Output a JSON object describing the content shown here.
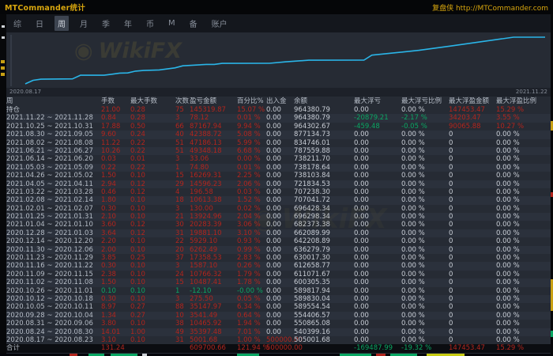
{
  "window": {
    "title": "MTCommander统计",
    "brand": "复盘侠 http://MTCommander.com"
  },
  "tabs": {
    "items": [
      {
        "label": "综",
        "selected": false
      },
      {
        "label": "日",
        "selected": false
      },
      {
        "label": "周",
        "selected": true
      },
      {
        "label": "月",
        "selected": false
      },
      {
        "label": "季",
        "selected": false
      },
      {
        "label": "年",
        "selected": false
      },
      {
        "label": "币",
        "selected": false
      },
      {
        "label": "M",
        "selected": false
      },
      {
        "label": "备",
        "selected": false
      },
      {
        "label": "账户",
        "selected": false
      }
    ]
  },
  "watermark": {
    "label": "WikiFX",
    "logo_icon": "◉"
  },
  "colors": {
    "accent_yellow": "#d8a60e",
    "equity_line": "#2ab5e8",
    "profit_red": "#b3251d",
    "loss_green": "#0aa763",
    "panel_bg": "#262b34"
  },
  "chart": {
    "start_date": "2020.08.17",
    "end_date": "2021.11.22",
    "chart_data": {
      "type": "line",
      "title": "",
      "xlabel": "",
      "ylabel": "",
      "legend": [],
      "grid": false,
      "x": [
        "2020.08.17",
        "2020.08.24",
        "2020.08.31",
        "2020.09.28",
        "2020.10.05",
        "2020.10.12",
        "2020.10.26",
        "2020.11.02",
        "2020.11.09",
        "2020.11.16",
        "2020.11.23",
        "2020.11.30",
        "2020.12.14",
        "2020.12.28",
        "2021.01.04",
        "2021.01.25",
        "2021.02.01",
        "2021.02.08",
        "2021.03.22",
        "2021.04.05",
        "2021.04.26",
        "2021.05.03",
        "2021.06.14",
        "2021.06.21",
        "2021.08.02",
        "2021.08.30",
        "2021.10.25",
        "2021.11.22"
      ],
      "values": [
        505001.68,
        540399.16,
        550865.08,
        554406.57,
        589554.54,
        589830.04,
        589817.94,
        600305.35,
        611071.67,
        612658.77,
        630017.3,
        636279.79,
        642208.89,
        662089.99,
        682373.38,
        696298.34,
        696428.34,
        707041.72,
        707238.3,
        721834.53,
        738103.84,
        738178.64,
        738211.7,
        787559.88,
        834746.01,
        877134.73,
        964302.67,
        964380.79
      ],
      "ylim": [
        505001.68,
        964380.79
      ]
    }
  },
  "table": {
    "columns": [
      "周",
      "手数",
      "最大手数",
      "次数",
      "盈亏金额",
      "百分比%",
      "出入金",
      "余额",
      "最大浮亏",
      "最大浮亏比例",
      "最大浮盈金额",
      "最大浮盈比例"
    ],
    "rows": [
      {
        "cells": [
          "持仓",
          "21.00",
          "0.28",
          "75",
          "145319.87",
          "15.07 %",
          "0.00",
          "964380.79",
          "0.00",
          "0.00 %",
          "147453.47",
          "15.29 %"
        ],
        "styles": "drrrrrwwwwrr"
      },
      {
        "cells": [
          "2021.11.22 ~ 2021.11.28",
          "0.84",
          "0.28",
          "3",
          "78.12",
          "0.01 %",
          "0.00",
          "964380.79",
          "-20879.21",
          "-2.17 %",
          "34203.47",
          "3.55 %"
        ],
        "styles": "drrrrrwwggrr"
      },
      {
        "cells": [
          "2021.10.25 ~ 2021.10.31",
          "17.88",
          "0.50",
          "66",
          "87167.94",
          "9.94 %",
          "0.00",
          "964302.67",
          "-459.48",
          "-0.05 %",
          "90065.88",
          "10.27 %"
        ],
        "styles": "drrrrrwwggrr"
      },
      {
        "cells": [
          "2021.08.30 ~ 2021.09.05",
          "9.60",
          "0.24",
          "40",
          "42388.72",
          "5.08 %",
          "0.00",
          "877134.73",
          "0.00",
          "0.00 %",
          "0",
          "0.00 %"
        ],
        "styles": "drrrrrwwwwww"
      },
      {
        "cells": [
          "2021.08.02 ~ 2021.08.08",
          "11.22",
          "0.22",
          "51",
          "47186.13",
          "5.99 %",
          "0.00",
          "834746.01",
          "0.00",
          "0.00 %",
          "0",
          "0.00 %"
        ],
        "styles": "drrrrrwwwwww"
      },
      {
        "cells": [
          "2021.06.21 ~ 2021.06.27",
          "10.26",
          "0.22",
          "51",
          "49348.18",
          "6.68 %",
          "0.00",
          "787559.88",
          "0.00",
          "0.00 %",
          "0",
          "0.00 %"
        ],
        "styles": "drrrrrwwwwww"
      },
      {
        "cells": [
          "2021.06.14 ~ 2021.06.20",
          "0.03",
          "0.01",
          "3",
          "33.06",
          "0.00 %",
          "0.00",
          "738211.70",
          "0.00",
          "0.00 %",
          "0",
          "0.00 %"
        ],
        "styles": "drrrrrwwwwww"
      },
      {
        "cells": [
          "2021.05.03 ~ 2021.05.09",
          "0.22",
          "0.22",
          "1",
          "74.80",
          "0.01 %",
          "0.00",
          "738178.64",
          "0.00",
          "0.00 %",
          "0",
          "0.00 %"
        ],
        "styles": "drrrrrwwwwww"
      },
      {
        "cells": [
          "2021.04.26 ~ 2021.05.02",
          "1.50",
          "0.10",
          "15",
          "16269.31",
          "2.25 %",
          "0.00",
          "738103.84",
          "0.00",
          "0.00 %",
          "0",
          "0.00 %"
        ],
        "styles": "drrrrrwwwwww"
      },
      {
        "cells": [
          "2021.04.05 ~ 2021.04.11",
          "2.94",
          "0.12",
          "29",
          "14596.23",
          "2.06 %",
          "0.00",
          "721834.53",
          "0.00",
          "0.00 %",
          "0",
          "0.00 %"
        ],
        "styles": "drrrrrwwwwww"
      },
      {
        "cells": [
          "2021.03.22 ~ 2021.03.28",
          "0.46",
          "0.12",
          "4",
          "196.58",
          "0.03 %",
          "0.00",
          "707238.30",
          "0.00",
          "0.00 %",
          "0",
          "0.00 %"
        ],
        "styles": "drrrrrwwwwww"
      },
      {
        "cells": [
          "2021.02.08 ~ 2021.02.14",
          "1.80",
          "0.10",
          "18",
          "10613.38",
          "1.52 %",
          "0.00",
          "707041.72",
          "0.00",
          "0.00 %",
          "0",
          "0.00 %"
        ],
        "styles": "drrrrrwwwwww"
      },
      {
        "cells": [
          "2021.02.01 ~ 2021.02.07",
          "0.30",
          "0.10",
          "3",
          "130.00",
          "0.02 %",
          "0.00",
          "696428.34",
          "0.00",
          "0.00 %",
          "0",
          "0.00 %"
        ],
        "styles": "drrrrrwwwwww"
      },
      {
        "cells": [
          "2021.01.25 ~ 2021.01.31",
          "2.10",
          "0.10",
          "21",
          "13924.96",
          "2.04 %",
          "0.00",
          "696298.34",
          "0.00",
          "0.00 %",
          "0",
          "0.00 %"
        ],
        "styles": "drrrrrwwwwww"
      },
      {
        "cells": [
          "2021.01.04 ~ 2021.01.10",
          "3.60",
          "0.12",
          "30",
          "20283.39",
          "3.06 %",
          "0.00",
          "682373.38",
          "0.00",
          "0.00 %",
          "0",
          "0.00 %"
        ],
        "styles": "drrrrrwwwwww"
      },
      {
        "cells": [
          "2020.12.28 ~ 2021.01.03",
          "3.64",
          "0.12",
          "31",
          "19881.10",
          "3.10 %",
          "0.00",
          "662089.99",
          "0.00",
          "0.00 %",
          "0",
          "0.00 %"
        ],
        "styles": "drrrrrwwwwww"
      },
      {
        "cells": [
          "2020.12.14 ~ 2020.12.20",
          "2.20",
          "0.10",
          "22",
          "5929.10",
          "0.93 %",
          "0.00",
          "642208.89",
          "0.00",
          "0.00 %",
          "0",
          "0.00 %"
        ],
        "styles": "drrrrrwwwwww"
      },
      {
        "cells": [
          "2020.11.30 ~ 2020.12.06",
          "2.00",
          "0.10",
          "20",
          "6262.49",
          "0.99 %",
          "0.00",
          "636279.79",
          "0.00",
          "0.00 %",
          "0",
          "0.00 %"
        ],
        "styles": "drrrrrwwwwww"
      },
      {
        "cells": [
          "2020.11.23 ~ 2020.11.29",
          "3.85",
          "0.25",
          "37",
          "17358.53",
          "2.83 %",
          "0.00",
          "630017.30",
          "0.00",
          "0.00 %",
          "0",
          "0.00 %"
        ],
        "styles": "drrrrrwwwwww"
      },
      {
        "cells": [
          "2020.11.16 ~ 2020.11.22",
          "0.30",
          "0.10",
          "3",
          "1587.10",
          "0.26 %",
          "0.00",
          "612658.77",
          "0.00",
          "0.00 %",
          "0",
          "0.00 %"
        ],
        "styles": "drrrrrwwwwww"
      },
      {
        "cells": [
          "2020.11.09 ~ 2020.11.15",
          "2.38",
          "0.10",
          "24",
          "10766.32",
          "1.79 %",
          "0.00",
          "611071.67",
          "0.00",
          "0.00 %",
          "0",
          "0.00 %"
        ],
        "styles": "drrrrrwwwwww"
      },
      {
        "cells": [
          "2020.11.02 ~ 2020.11.08",
          "1.50",
          "0.10",
          "15",
          "10487.41",
          "1.78 %",
          "0.00",
          "600305.35",
          "0.00",
          "0.00 %",
          "0",
          "0.00 %"
        ],
        "styles": "drrrrrwwwwww"
      },
      {
        "cells": [
          "2020.10.26 ~ 2020.11.01",
          "0.10",
          "0.10",
          "1",
          "-12.10",
          "-0.00 %",
          "0.00",
          "589817.94",
          "0.00",
          "0.00 %",
          "0",
          "0.00 %"
        ],
        "styles": "dgggggwwwwww"
      },
      {
        "cells": [
          "2020.10.12 ~ 2020.10.18",
          "0.30",
          "0.10",
          "3",
          "275.50",
          "0.05 %",
          "0.00",
          "589830.04",
          "0.00",
          "0.00 %",
          "0",
          "0.00 %"
        ],
        "styles": "drrrrrwwwwww"
      },
      {
        "cells": [
          "2020.10.05 ~ 2020.10.11",
          "8.97",
          "0.27",
          "88",
          "35147.97",
          "6.34 %",
          "0.00",
          "589554.54",
          "0.00",
          "0.00 %",
          "0",
          "0.00 %"
        ],
        "styles": "drrrrrwwwwww"
      },
      {
        "cells": [
          "2020.09.28 ~ 2020.10.04",
          "1.34",
          "0.27",
          "10",
          "3541.49",
          "0.64 %",
          "0.00",
          "554406.57",
          "0.00",
          "0.00 %",
          "0",
          "0.00 %"
        ],
        "styles": "drrrrrwwwwww"
      },
      {
        "cells": [
          "2020.08.31 ~ 2020.09.06",
          "3.80",
          "0.10",
          "38",
          "10465.92",
          "1.94 %",
          "0.00",
          "550865.08",
          "0.00",
          "0.00 %",
          "0",
          "0.00 %"
        ],
        "styles": "drrrrrwwwwww"
      },
      {
        "cells": [
          "2020.08.24 ~ 2020.08.30",
          "14.01",
          "1.00",
          "49",
          "35397.48",
          "7.01 %",
          "0.00",
          "540399.16",
          "0.00",
          "0.00 %",
          "0",
          "0.00 %"
        ],
        "styles": "drrrrrwwwwww"
      },
      {
        "cells": [
          "2020.08.17 ~ 2020.08.23",
          "3.10",
          "0.10",
          "31",
          "5001.68",
          "1.00 %",
          "500000.00",
          "505001.68",
          "0.00",
          "0.00 %",
          "0",
          "0.00 %"
        ],
        "styles": "drrrrrrwwwww"
      },
      {
        "cells": [
          "合计",
          "131.24",
          "",
          "",
          "609700.66",
          "121.94 %",
          "500000.00",
          "",
          "-169487.99",
          "-19.32 %",
          "147453.47",
          "15.29 %"
        ],
        "styles": "drwwrrrwggrr",
        "total": true
      }
    ]
  }
}
